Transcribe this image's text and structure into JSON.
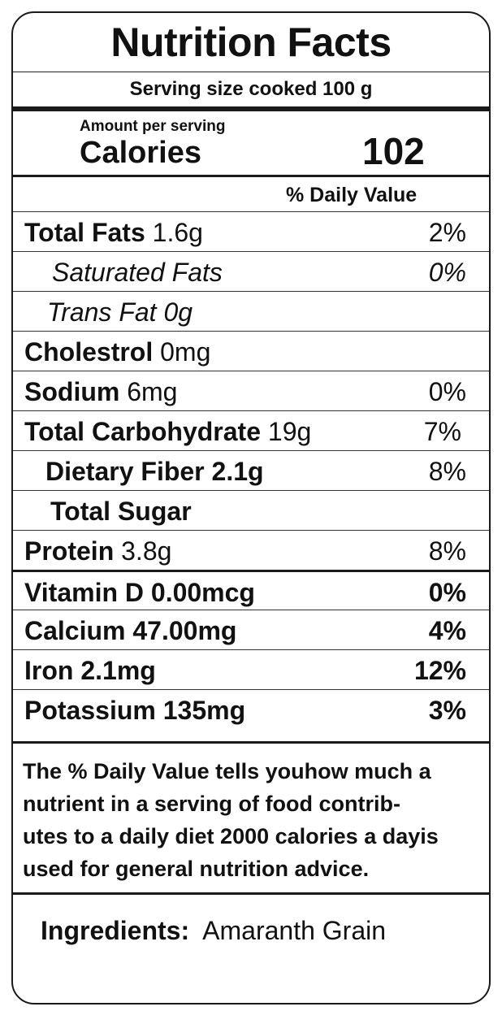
{
  "label": {
    "title": "Nutrition Facts",
    "serving": "Serving size cooked 100 g",
    "amount_per_serving": "Amount per serving",
    "calories_label": "Calories",
    "calories_value": "102",
    "daily_value_header": "%  Daily Value",
    "nutrients": [
      {
        "name": "Total Fats",
        "amount": "1.6g",
        "dv": "2%"
      },
      {
        "name": "Saturated Fats",
        "amount": "",
        "dv": "0%"
      },
      {
        "name": "Trans Fat",
        "amount": "0g",
        "dv": ""
      },
      {
        "name": "Cholestrol",
        "amount": "0mg",
        "dv": ""
      },
      {
        "name": "Sodium",
        "amount": "6mg",
        "dv": "0%"
      },
      {
        "name": "Total Carbohydrate",
        "amount": "19g",
        "dv": "7%"
      },
      {
        "name": "Dietary Fiber",
        "amount": "2.1g",
        "dv": "8%"
      },
      {
        "name": "Total Sugar",
        "amount": "",
        "dv": ""
      },
      {
        "name": "Protein",
        "amount": "3.8g",
        "dv": "8%"
      }
    ],
    "vitamins": [
      {
        "name": "Vitamin D",
        "amount": "0.00mcg",
        "dv": "0%"
      },
      {
        "name": "Calcium",
        "amount": "47.00mg",
        "dv": "4%"
      },
      {
        "name": "Iron",
        "amount": "2.1mg",
        "dv": "12%"
      },
      {
        "name": "Potassium",
        "amount": "135mg",
        "dv": "3%"
      }
    ],
    "footnote": "The % Daily Value tells youhow much a nutrient in a serving of food contrib-utes to a daily diet 2000 calories a dayis used for general nutrition advice.",
    "footnote_lines": [
      "The % Daily Value tells youhow much a",
      "nutrient in a serving of food contrib-",
      "utes to a daily diet 2000 calories a dayis",
      "used for general nutrition advice."
    ],
    "ingredients_label": "Ingredients:",
    "ingredients_value": "Amaranth Grain"
  }
}
